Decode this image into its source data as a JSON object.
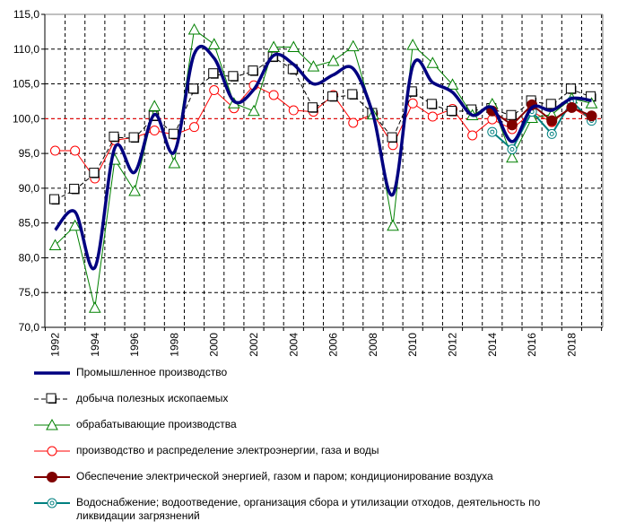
{
  "chart_data": {
    "type": "line",
    "title": "",
    "xlabel": "",
    "ylabel": "",
    "ylim": [
      70,
      115
    ],
    "yticks": [
      "70,0",
      "75,0",
      "80,0",
      "85,0",
      "90,0",
      "95,0",
      "100,0",
      "105,0",
      "110,0",
      "115,0"
    ],
    "xtick_labels": [
      "1992",
      "1994",
      "1996",
      "1998",
      "2000",
      "2002",
      "2004",
      "2006",
      "2008",
      "2010",
      "2012",
      "2014",
      "2016",
      "2018"
    ],
    "x": [
      1992,
      1993,
      1994,
      1995,
      1996,
      1997,
      1998,
      1999,
      2000,
      2001,
      2002,
      2003,
      2004,
      2005,
      2006,
      2007,
      2008,
      2009,
      2010,
      2011,
      2012,
      2013,
      2014,
      2015,
      2016,
      2017,
      2018,
      2019
    ],
    "reference_line": 100,
    "grid": true,
    "legend_position": "bottom",
    "series": [
      {
        "name": "Промышленное производство",
        "color": "#000080",
        "smooth": true,
        "marker": "none",
        "values": [
          84.0,
          86.6,
          78.6,
          95.8,
          92.3,
          100.6,
          95.2,
          109.3,
          108.7,
          102.5,
          104.2,
          109.1,
          107.8,
          105.0,
          106.3,
          107.2,
          100.6,
          89.1,
          107.6,
          105.2,
          103.8,
          100.5,
          101.6,
          96.7,
          101.6,
          101.2,
          102.9,
          102.6
        ]
      },
      {
        "name": "добыча полезных ископаемых",
        "color": "#000000",
        "marker": "square",
        "dashed": true,
        "values": [
          88.3,
          89.8,
          92.1,
          97.3,
          97.2,
          100.3,
          97.7,
          104.2,
          106.4,
          106.0,
          106.8,
          108.8,
          107.0,
          101.5,
          103.1,
          103.4,
          100.7,
          97.2,
          103.8,
          102.0,
          101.0,
          101.2,
          101.4,
          100.4,
          102.5,
          102.0,
          104.2,
          103.1
        ]
      },
      {
        "name": "обрабатывающие производства",
        "color": "#008000",
        "marker": "triangle",
        "values": [
          81.8,
          84.6,
          72.8,
          94.1,
          89.6,
          101.8,
          93.6,
          112.8,
          110.7,
          102.2,
          101.1,
          110.3,
          110.3,
          107.5,
          108.3,
          110.4,
          100.6,
          84.6,
          110.6,
          108.0,
          104.9,
          100.5,
          102.1,
          94.4,
          100.1,
          100.6,
          102.9,
          102.2
        ]
      },
      {
        "name": "производство и распределение  электроэнергии, газа и воды",
        "color": "#ff0000",
        "marker": "circle",
        "values": [
          95.4,
          95.4,
          91.4,
          96.9,
          97.3,
          98.3,
          97.7,
          98.8,
          104.1,
          101.5,
          104.8,
          103.4,
          101.2,
          101.0,
          103.4,
          99.4,
          100.7,
          96.2,
          102.2,
          100.3,
          101.4,
          97.6,
          99.9,
          98.5,
          101.0,
          99.5,
          101.6,
          99.9
        ]
      },
      {
        "name": "Обеспечение электрической энергией, газом и паром; кондиционирование воздуха",
        "color": "#800000",
        "marker": "filled-circle",
        "values": [
          null,
          null,
          null,
          null,
          null,
          null,
          null,
          null,
          null,
          null,
          null,
          null,
          null,
          null,
          null,
          null,
          null,
          null,
          null,
          null,
          null,
          null,
          101.1,
          99.1,
          102.0,
          99.7,
          101.6,
          100.4
        ]
      },
      {
        "name": "Водоснабжение; водоотведение, организация сбора и утилизации отходов, деятельность по ликвидации загрязнений",
        "color": "#008080",
        "marker": "ring",
        "values": [
          null,
          null,
          null,
          null,
          null,
          null,
          null,
          null,
          null,
          null,
          null,
          null,
          null,
          null,
          null,
          null,
          null,
          null,
          null,
          null,
          null,
          null,
          98.1,
          95.6,
          101.0,
          97.8,
          102.5,
          99.7
        ]
      }
    ]
  }
}
